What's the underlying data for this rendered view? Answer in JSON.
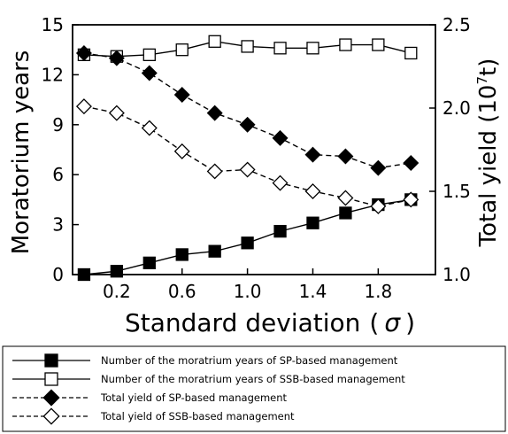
{
  "chart_data": {
    "type": "line",
    "xlabel": "Standard deviation",
    "xlabel_symbol": "σ",
    "ylabel": "Moratorium years",
    "y2label_prefix": "Total yield (10",
    "y2label_exp": "7",
    "y2label_suffix": "t)",
    "x": [
      0.0,
      0.2,
      0.4,
      0.6,
      0.8,
      1.0,
      1.2,
      1.4,
      1.6,
      1.8,
      2.0
    ],
    "xlim": [
      -0.07,
      2.15
    ],
    "ylim": [
      0,
      15
    ],
    "y2lim": [
      1.0,
      2.5
    ],
    "xticks": [
      "0.2",
      "0.6",
      "1.0",
      "1.4",
      "1.8"
    ],
    "xtick_values": [
      0.2,
      0.6,
      1.0,
      1.4,
      1.8
    ],
    "yticks": [
      "0",
      "3",
      "6",
      "9",
      "12",
      "15"
    ],
    "ytick_values": [
      0,
      3,
      6,
      9,
      12,
      15
    ],
    "y2ticks": [
      "1.0",
      "1.5",
      "2.0",
      "2.5"
    ],
    "y2tick_values": [
      1.0,
      1.5,
      2.0,
      2.5
    ],
    "grid": false,
    "legend_position": "below",
    "series": [
      {
        "name": "Number of the moratrium years of SP-based management",
        "axis": "left",
        "marker": "square",
        "filled": true,
        "dashed": false,
        "values": [
          0.0,
          0.2,
          0.7,
          1.2,
          1.4,
          1.9,
          2.6,
          3.1,
          3.7,
          4.2,
          4.5
        ]
      },
      {
        "name": "Number of the moratrium years of SSB-based management",
        "axis": "left",
        "marker": "square",
        "filled": false,
        "dashed": false,
        "values": [
          13.2,
          13.1,
          13.2,
          13.5,
          14.0,
          13.7,
          13.6,
          13.6,
          13.8,
          13.8,
          13.3
        ]
      },
      {
        "name": "Total yield of SP-based management",
        "axis": "right",
        "marker": "diamond",
        "filled": true,
        "dashed": true,
        "values": [
          2.33,
          2.3,
          2.21,
          2.08,
          1.97,
          1.9,
          1.82,
          1.72,
          1.71,
          1.64,
          1.67
        ]
      },
      {
        "name": "Total yield of SSB-based management",
        "axis": "right",
        "marker": "diamond",
        "filled": false,
        "dashed": true,
        "values": [
          2.01,
          1.97,
          1.88,
          1.74,
          1.62,
          1.63,
          1.55,
          1.5,
          1.46,
          1.41,
          1.45
        ]
      }
    ]
  }
}
